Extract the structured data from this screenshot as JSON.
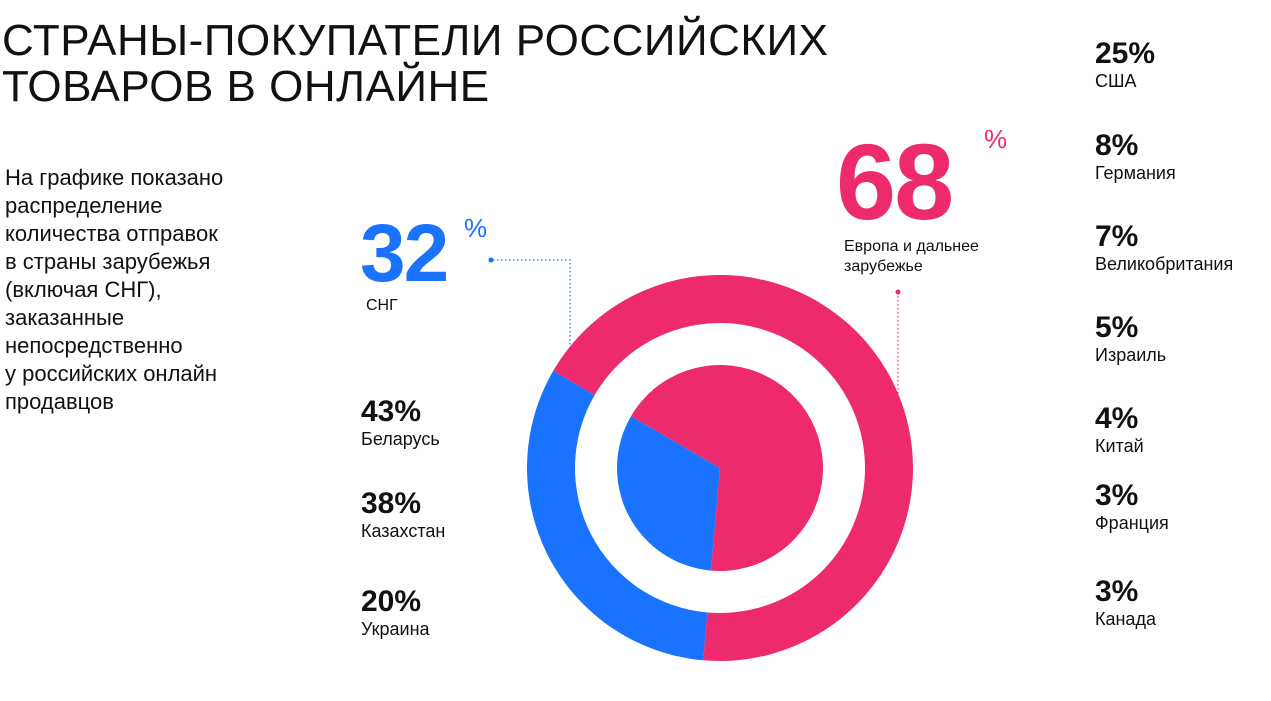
{
  "title": [
    "СТРАНЫ-ПОКУПАТЕЛИ РОССИЙСКИХ",
    "ТОВАРОВ В ОНЛАЙНЕ"
  ],
  "description": [
    "На графике показано",
    "распределение",
    "количества отправок",
    "в страны зарубежья",
    "(включая СНГ),",
    "заказанные",
    "непосредственно",
    "у российских онлайн",
    "продавцов"
  ],
  "groups": {
    "cis": {
      "value": "32",
      "unit": "%",
      "label": "СНГ",
      "color": "#1a73ff"
    },
    "far": {
      "value": "68",
      "unit": "%",
      "label": [
        "Европа и дальнее",
        "зарубежье"
      ],
      "color": "#ee2a6e"
    }
  },
  "cis_countries": [
    {
      "value": "43%",
      "name": "Беларусь"
    },
    {
      "value": "38%",
      "name": "Казахстан"
    },
    {
      "value": "20%",
      "name": "Украина"
    }
  ],
  "far_countries": [
    {
      "value": "25%",
      "name": "США"
    },
    {
      "value": "8%",
      "name": "Германия"
    },
    {
      "value": "7%",
      "name": "Великобритания"
    },
    {
      "value": "5%",
      "name": "Израиль"
    },
    {
      "value": "4%",
      "name": "Китай"
    },
    {
      "value": "3%",
      "name": "Франция"
    },
    {
      "value": "3%",
      "name": "Канада"
    }
  ],
  "chart_data": {
    "type": "pie",
    "categories": [
      "СНГ",
      "Европа и дальнее зарубежье"
    ],
    "values": [
      32,
      68
    ],
    "colors": [
      "#1a73ff",
      "#ee2a6e"
    ],
    "style": "donut ring with inner pie"
  }
}
